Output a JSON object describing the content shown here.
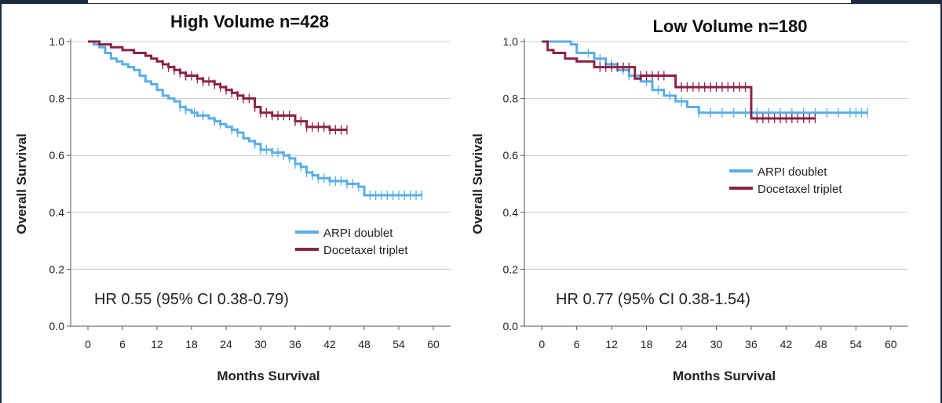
{
  "chart_data": [
    {
      "type": "line",
      "subtype": "kaplan-meier",
      "title": "High Volume n=428",
      "xlabel": "Months Survival",
      "ylabel": "Overall Survival",
      "xlim": [
        -3,
        63
      ],
      "ylim": [
        0,
        1
      ],
      "xticks": [
        "0",
        "6",
        "12",
        "18",
        "24",
        "30",
        "36",
        "42",
        "48",
        "54",
        "60"
      ],
      "yticks": [
        "0.0",
        "0.2",
        "0.4",
        "0.6",
        "0.8",
        "1.0"
      ],
      "grid": "horizontal",
      "legend_position": "bottom-right",
      "annotation": "HR 0.55 (95% CI 0.38-0.79)",
      "series": [
        {
          "name": "ARPI doublet",
          "color": "#5aaee6",
          "x": [
            0,
            1,
            2,
            3,
            4,
            5,
            6,
            7,
            8,
            9,
            10,
            11,
            12,
            13,
            14,
            15,
            16,
            17,
            18,
            19,
            20,
            21,
            22,
            23,
            24,
            25,
            26,
            27,
            28,
            29,
            30,
            31,
            32,
            33,
            34,
            35,
            36,
            37,
            38,
            39,
            40,
            41,
            42,
            43,
            44,
            45,
            46,
            47,
            48,
            50,
            52,
            54,
            55,
            57,
            58
          ],
          "y": [
            1.0,
            0.99,
            0.98,
            0.96,
            0.94,
            0.93,
            0.92,
            0.91,
            0.9,
            0.88,
            0.86,
            0.85,
            0.83,
            0.81,
            0.8,
            0.79,
            0.77,
            0.76,
            0.75,
            0.74,
            0.74,
            0.73,
            0.72,
            0.71,
            0.7,
            0.69,
            0.68,
            0.66,
            0.65,
            0.64,
            0.62,
            0.62,
            0.61,
            0.61,
            0.6,
            0.59,
            0.57,
            0.56,
            0.54,
            0.53,
            0.52,
            0.52,
            0.51,
            0.51,
            0.51,
            0.5,
            0.5,
            0.49,
            0.46,
            0.46,
            0.46,
            0.46,
            0.46,
            0.46,
            0.46
          ],
          "censor_x": [
            16,
            17,
            18.5,
            20,
            22,
            23,
            25,
            26,
            29,
            30,
            31,
            32,
            33,
            34,
            35,
            36,
            37,
            38,
            39,
            40,
            41,
            42,
            43,
            44,
            45,
            46,
            47,
            49,
            50,
            51,
            52,
            53,
            54,
            55,
            56,
            57,
            58
          ]
        },
        {
          "name": "Docetaxel triplet",
          "color": "#8b2346",
          "x": [
            0,
            2,
            4,
            6,
            8,
            10,
            11,
            12,
            13,
            14,
            15,
            16,
            17,
            18,
            19,
            20,
            21,
            22,
            23,
            24,
            25,
            26,
            27,
            28,
            29,
            30,
            31,
            32,
            33,
            34,
            35,
            36,
            37,
            38,
            39,
            40,
            41,
            42,
            43,
            44,
            45
          ],
          "y": [
            1.0,
            0.99,
            0.98,
            0.97,
            0.96,
            0.95,
            0.94,
            0.93,
            0.92,
            0.91,
            0.9,
            0.89,
            0.88,
            0.88,
            0.87,
            0.86,
            0.86,
            0.85,
            0.84,
            0.83,
            0.82,
            0.81,
            0.8,
            0.8,
            0.77,
            0.75,
            0.75,
            0.74,
            0.74,
            0.74,
            0.74,
            0.72,
            0.72,
            0.7,
            0.7,
            0.7,
            0.7,
            0.69,
            0.69,
            0.69,
            0.69
          ],
          "censor_x": [
            13,
            14,
            15,
            16,
            17,
            18,
            19,
            20,
            21,
            22,
            23,
            24,
            25,
            26,
            27,
            28,
            29,
            30,
            31,
            32,
            33,
            34,
            35,
            36,
            37,
            38,
            39,
            40,
            41,
            42,
            43,
            44,
            45
          ]
        }
      ]
    },
    {
      "type": "line",
      "subtype": "kaplan-meier",
      "title": "Low Volume n=180",
      "xlabel": "Months Survival",
      "ylabel": "Overall Survival",
      "xlim": [
        -3,
        63
      ],
      "ylim": [
        0,
        1
      ],
      "xticks": [
        "0",
        "6",
        "12",
        "18",
        "24",
        "30",
        "36",
        "42",
        "48",
        "54",
        "60"
      ],
      "yticks": [
        "0.0",
        "0.2",
        "0.4",
        "0.6",
        "0.8",
        "1.0"
      ],
      "grid": "horizontal",
      "legend_position": "middle-right",
      "annotation": "HR 0.77 (95% CI 0.38-1.54)",
      "series": [
        {
          "name": "ARPI doublet",
          "color": "#5aaee6",
          "x": [
            0,
            5,
            6,
            9,
            11,
            13,
            15,
            17,
            19,
            21,
            23,
            25,
            27,
            30,
            33,
            36,
            40,
            45,
            50,
            53,
            56
          ],
          "y": [
            1.0,
            0.99,
            0.96,
            0.94,
            0.92,
            0.9,
            0.88,
            0.86,
            0.83,
            0.81,
            0.79,
            0.77,
            0.75,
            0.75,
            0.75,
            0.75,
            0.75,
            0.75,
            0.75,
            0.75,
            0.75
          ],
          "censor_x": [
            8,
            10,
            12,
            14,
            15,
            16,
            18,
            20,
            22,
            24,
            27,
            29,
            31,
            33,
            35,
            37,
            39,
            41,
            43,
            45,
            47,
            49,
            51,
            53,
            54,
            55,
            56
          ]
        },
        {
          "name": "Docetaxel triplet",
          "color": "#8b2346",
          "x": [
            0,
            1,
            2,
            4,
            6,
            9,
            12,
            16,
            17,
            22,
            23,
            36,
            36,
            47
          ],
          "y": [
            1.0,
            0.97,
            0.96,
            0.94,
            0.93,
            0.91,
            0.91,
            0.87,
            0.88,
            0.88,
            0.84,
            0.84,
            0.73,
            0.73
          ],
          "censor_x": [
            10,
            11,
            12,
            13,
            14,
            15,
            17,
            18,
            19,
            20,
            21,
            24,
            25,
            26,
            27,
            28,
            29,
            30,
            31,
            32,
            33,
            34,
            35,
            37,
            38,
            39,
            40,
            41,
            42,
            43,
            44,
            45,
            46,
            47
          ]
        }
      ]
    }
  ]
}
